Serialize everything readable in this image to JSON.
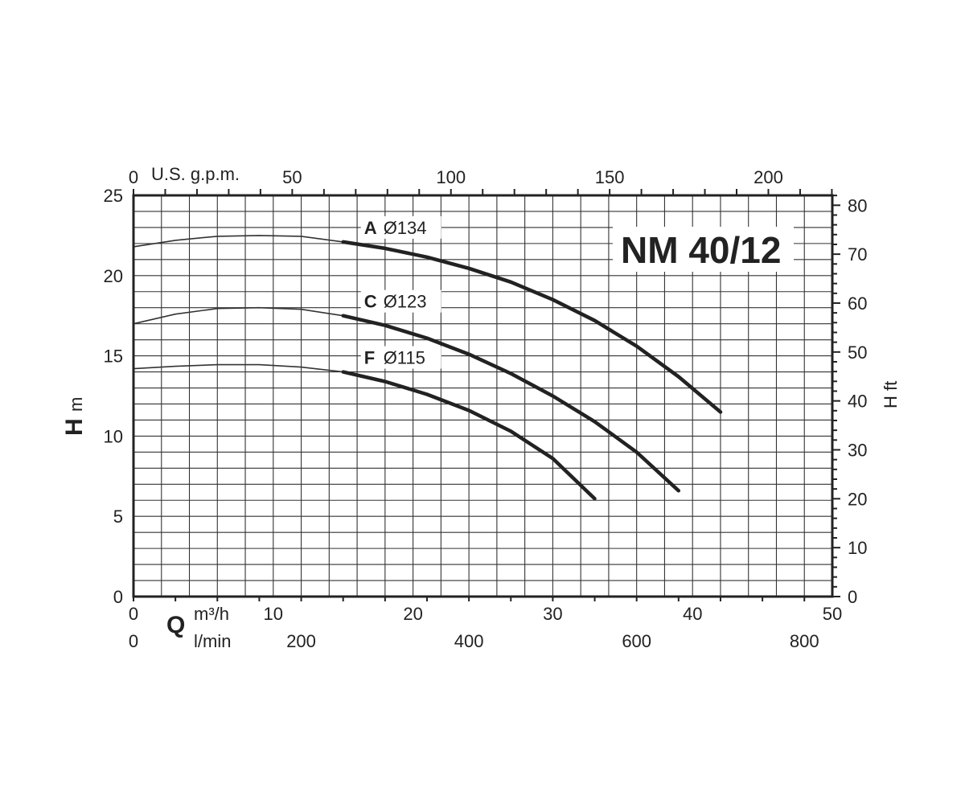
{
  "chart_data": {
    "type": "line",
    "title": "NM 40/12",
    "x": {
      "primary_unit": "m³/h",
      "primary_symbol": "Q",
      "range": [
        0,
        50
      ],
      "ticks": [
        0,
        10,
        20,
        30,
        40,
        50
      ],
      "secondary_unit": "l/min",
      "secondary_ticks": [
        0,
        200,
        400,
        600,
        800
      ],
      "top_unit": "U.S. g.p.m.",
      "top_ticks": [
        0,
        50,
        100,
        150,
        200
      ]
    },
    "y": {
      "symbol": "H",
      "unit": "m",
      "range": [
        0,
        25
      ],
      "ticks": [
        0,
        5,
        10,
        15,
        20,
        25
      ],
      "right_label": "H ft",
      "right_ticks": [
        0,
        10,
        20,
        30,
        40,
        50,
        60,
        70,
        80
      ]
    },
    "grid": true,
    "series": [
      {
        "letter": "A",
        "diameter": "Ø134",
        "thin": [
          [
            0,
            21.8
          ],
          [
            3,
            22.2
          ],
          [
            6,
            22.45
          ],
          [
            9,
            22.5
          ],
          [
            12,
            22.45
          ],
          [
            15,
            22.1
          ]
        ],
        "thick": [
          [
            15,
            22.1
          ],
          [
            18,
            21.7
          ],
          [
            21,
            21.15
          ],
          [
            24,
            20.45
          ],
          [
            27,
            19.6
          ],
          [
            30,
            18.5
          ],
          [
            33,
            17.2
          ],
          [
            36,
            15.6
          ],
          [
            39,
            13.7
          ],
          [
            42,
            11.5
          ]
        ]
      },
      {
        "letter": "C",
        "diameter": "Ø123",
        "thin": [
          [
            0,
            17.0
          ],
          [
            3,
            17.6
          ],
          [
            6,
            17.95
          ],
          [
            9,
            18.0
          ],
          [
            12,
            17.9
          ],
          [
            15,
            17.5
          ]
        ],
        "thick": [
          [
            15,
            17.5
          ],
          [
            18,
            16.9
          ],
          [
            21,
            16.1
          ],
          [
            24,
            15.1
          ],
          [
            27,
            13.9
          ],
          [
            30,
            12.5
          ],
          [
            33,
            10.9
          ],
          [
            36,
            9.0
          ],
          [
            39,
            6.6
          ]
        ]
      },
      {
        "letter": "F",
        "diameter": "Ø115",
        "thin": [
          [
            0,
            14.2
          ],
          [
            3,
            14.35
          ],
          [
            6,
            14.45
          ],
          [
            9,
            14.45
          ],
          [
            12,
            14.3
          ],
          [
            15,
            14.0
          ]
        ],
        "thick": [
          [
            15,
            14.0
          ],
          [
            18,
            13.4
          ],
          [
            21,
            12.6
          ],
          [
            24,
            11.6
          ],
          [
            27,
            10.3
          ],
          [
            30,
            8.6
          ],
          [
            33,
            6.1
          ]
        ]
      }
    ]
  }
}
